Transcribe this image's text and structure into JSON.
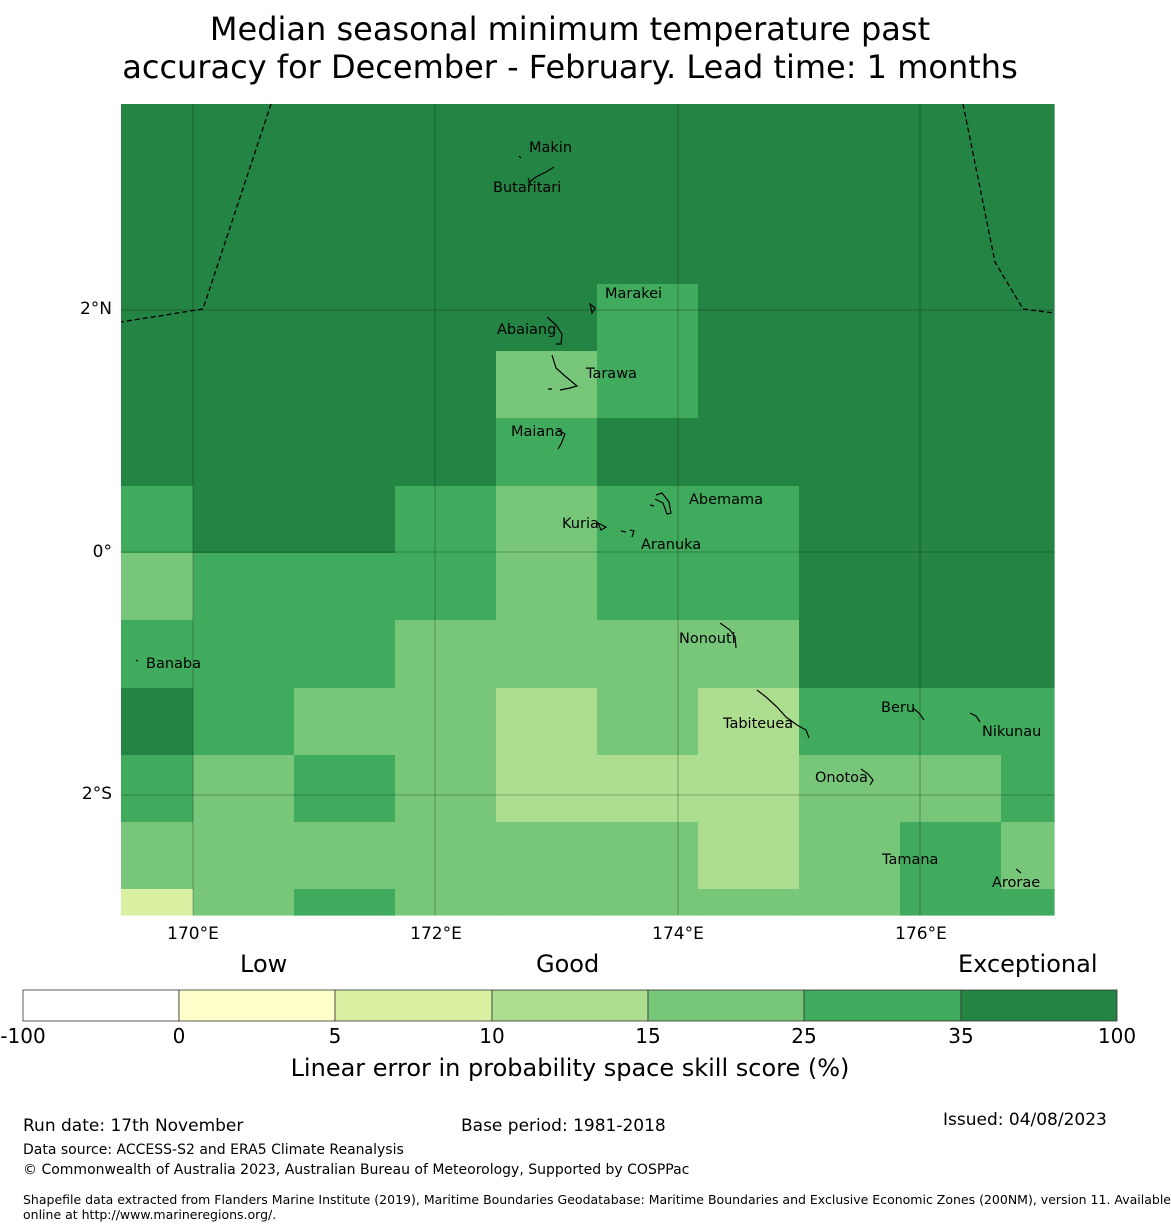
{
  "title": {
    "line1": "Median seasonal minimum temperature past",
    "line2": "accuracy for December - February. Lead time: 1 months"
  },
  "axes": {
    "lat_labels": [
      "2°N",
      "0°",
      "2°S"
    ],
    "lon_labels": [
      "170°E",
      "172°E",
      "174°E",
      "176°E"
    ]
  },
  "colorbar": {
    "categories": [
      "Low",
      "Good",
      "Exceptional"
    ],
    "ticks": [
      "-100",
      "0",
      "5",
      "10",
      "15",
      "25",
      "35",
      "100"
    ],
    "colors": [
      "#ffffff",
      "#ffffcc",
      "#d9f0a3",
      "#addd8e",
      "#78c679",
      "#41ab5d",
      "#238443"
    ],
    "title": "Linear error in probability space skill score (%)"
  },
  "islands": [
    {
      "name": "Makin"
    },
    {
      "name": "Butaritari"
    },
    {
      "name": "Marakei"
    },
    {
      "name": "Abaiang"
    },
    {
      "name": "Tarawa"
    },
    {
      "name": "Maiana"
    },
    {
      "name": "Abemama"
    },
    {
      "name": "Kuria"
    },
    {
      "name": "Aranuka"
    },
    {
      "name": "Nonouti"
    },
    {
      "name": "Banaba"
    },
    {
      "name": "Beru"
    },
    {
      "name": "Nikunau"
    },
    {
      "name": "Tabiteuea"
    },
    {
      "name": "Onotoa"
    },
    {
      "name": "Tamana"
    },
    {
      "name": "Arorae"
    }
  ],
  "footer": {
    "run_date": "Run date: 17th November",
    "base_period": "Base period: 1981-2018",
    "issued": "Issued: 04/08/2023",
    "data_source": "Data source: ACCESS-S2 and ERA5 Climate Reanalysis",
    "copyright": "© Commonwealth of Australia 2023, Australian Bureau of Meteorology, Supported by COSPPac",
    "shapefile_line1": "Shapefile data extracted from Flanders Marine Institute (2019), Maritime Boundaries Geodatabase: Maritime Boundaries and Exclusive Economic Zones (200NM), version 11. Available",
    "shapefile_line2": "online at http://www.marineregions.org/."
  }
}
